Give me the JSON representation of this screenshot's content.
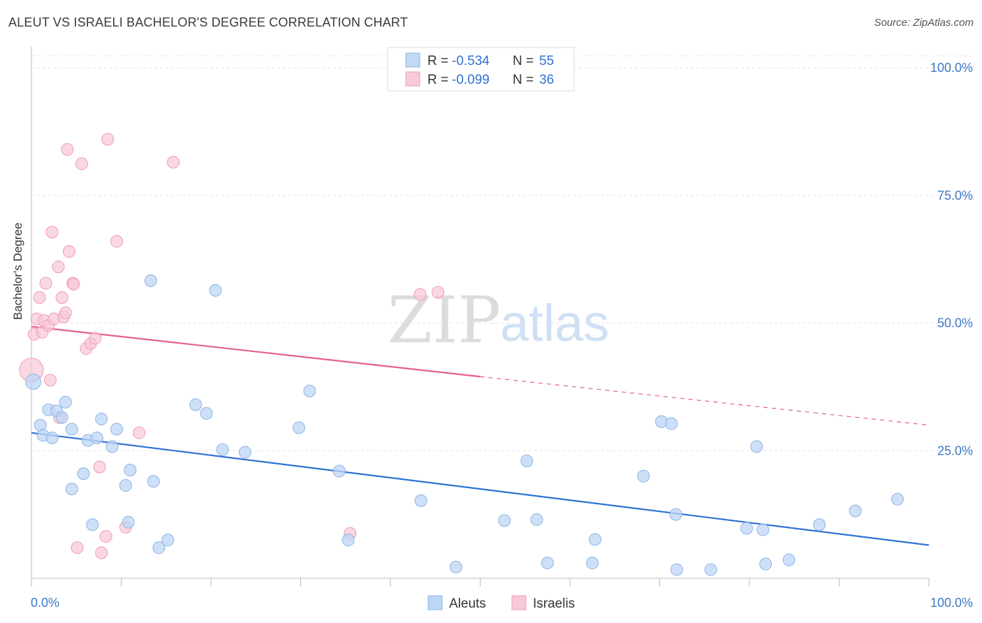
{
  "header": {
    "title": "ALEUT VS ISRAELI BACHELOR'S DEGREE CORRELATION CHART",
    "source": "Source: ZipAtlas.com"
  },
  "watermark": {
    "zip": "ZIP",
    "atlas": "atlas"
  },
  "legend_top": {
    "rows": [
      {
        "r_label": "R = ",
        "r_value": "-0.534",
        "n_label": "N = ",
        "n_value": "55",
        "color": "#a9c8ef"
      },
      {
        "r_label": "R = ",
        "r_value": "-0.099",
        "n_label": "N = ",
        "n_value": "36",
        "color": "#f6b5c8"
      }
    ]
  },
  "legend_bottom": {
    "items": [
      "Aleuts",
      "Israelis"
    ]
  },
  "colors": {
    "aleut_fill": "#bcd6f5",
    "aleut_stroke": "#8fb4e3",
    "aleut_line": "#2e72d2",
    "israeli_fill": "#f8c8d6",
    "israeli_stroke": "#ef9bb6",
    "israeli_line": "#e5608a",
    "axis_text": "#3f78c9",
    "grid": "#e3e3e3"
  },
  "chart_data": {
    "type": "scatter",
    "xlabel": "",
    "ylabel": "Bachelor's Degree",
    "xlim": [
      0,
      100
    ],
    "ylim": [
      0,
      100
    ],
    "x_ticks": [
      "0.0%",
      "100.0%"
    ],
    "y_ticks": [
      "25.0%",
      "50.0%",
      "75.0%",
      "100.0%"
    ],
    "y_tick_values": [
      25,
      50,
      75,
      100
    ],
    "grid": true,
    "series": [
      {
        "name": "Aleuts",
        "points": [
          [
            0.2,
            38.5
          ],
          [
            1.0,
            30.0
          ],
          [
            1.3,
            28.0
          ],
          [
            1.9,
            33.0
          ],
          [
            2.3,
            27.5
          ],
          [
            2.8,
            32.8
          ],
          [
            3.4,
            31.5
          ],
          [
            3.8,
            34.5
          ],
          [
            4.5,
            29.2
          ],
          [
            4.5,
            17.5
          ],
          [
            5.8,
            20.5
          ],
          [
            6.3,
            27.0
          ],
          [
            6.8,
            10.5
          ],
          [
            7.3,
            27.5
          ],
          [
            7.8,
            31.2
          ],
          [
            9.0,
            25.8
          ],
          [
            9.5,
            29.2
          ],
          [
            10.5,
            18.2
          ],
          [
            10.8,
            11.0
          ],
          [
            11.0,
            21.2
          ],
          [
            13.6,
            19.0
          ],
          [
            14.2,
            6.0
          ],
          [
            15.2,
            7.5
          ],
          [
            13.3,
            58.3
          ],
          [
            18.3,
            34.0
          ],
          [
            19.5,
            32.3
          ],
          [
            20.5,
            56.4
          ],
          [
            21.3,
            25.2
          ],
          [
            23.8,
            24.7
          ],
          [
            29.8,
            29.5
          ],
          [
            31.0,
            36.7
          ],
          [
            34.3,
            21.0
          ],
          [
            35.3,
            7.5
          ],
          [
            43.4,
            15.2
          ],
          [
            47.3,
            2.2
          ],
          [
            52.7,
            11.3
          ],
          [
            55.2,
            23.0
          ],
          [
            56.3,
            11.5
          ],
          [
            57.5,
            3.0
          ],
          [
            62.5,
            3.0
          ],
          [
            62.8,
            7.6
          ],
          [
            68.2,
            20.0
          ],
          [
            70.2,
            30.7
          ],
          [
            71.3,
            30.3
          ],
          [
            71.8,
            12.5
          ],
          [
            71.9,
            1.7
          ],
          [
            75.7,
            1.7
          ],
          [
            79.7,
            9.8
          ],
          [
            80.8,
            25.8
          ],
          [
            81.5,
            9.5
          ],
          [
            81.8,
            2.8
          ],
          [
            84.4,
            3.6
          ],
          [
            87.8,
            10.5
          ],
          [
            91.8,
            13.2
          ],
          [
            96.5,
            15.5
          ]
        ],
        "trend": {
          "x": [
            0,
            100
          ],
          "y": [
            28.5,
            6.5
          ]
        }
      },
      {
        "name": "Israelis",
        "points": [
          [
            0.0,
            40.8
          ],
          [
            0.3,
            47.8
          ],
          [
            0.6,
            50.8
          ],
          [
            0.9,
            55.0
          ],
          [
            1.2,
            48.2
          ],
          [
            1.4,
            50.5
          ],
          [
            1.6,
            57.8
          ],
          [
            1.9,
            49.5
          ],
          [
            2.1,
            38.8
          ],
          [
            2.3,
            67.8
          ],
          [
            2.5,
            50.8
          ],
          [
            3.0,
            61.0
          ],
          [
            3.1,
            31.5
          ],
          [
            3.4,
            55.0
          ],
          [
            3.6,
            51.2
          ],
          [
            3.8,
            52.0
          ],
          [
            4.0,
            84.0
          ],
          [
            4.2,
            64.0
          ],
          [
            4.6,
            57.8
          ],
          [
            4.7,
            57.6
          ],
          [
            5.1,
            6.0
          ],
          [
            5.6,
            81.2
          ],
          [
            6.1,
            45.0
          ],
          [
            6.6,
            46.0
          ],
          [
            7.1,
            47.0
          ],
          [
            7.6,
            21.8
          ],
          [
            7.8,
            5.0
          ],
          [
            8.3,
            8.2
          ],
          [
            8.5,
            86.0
          ],
          [
            9.5,
            66.0
          ],
          [
            10.5,
            10.0
          ],
          [
            12.0,
            28.5
          ],
          [
            15.8,
            81.5
          ],
          [
            35.5,
            8.8
          ],
          [
            43.3,
            55.6
          ],
          [
            45.3,
            56.0
          ]
        ],
        "trend": {
          "x": [
            0,
            50
          ],
          "y": [
            49.3,
            39.5
          ],
          "dashed_to": [
            100,
            30.0
          ]
        }
      }
    ]
  }
}
